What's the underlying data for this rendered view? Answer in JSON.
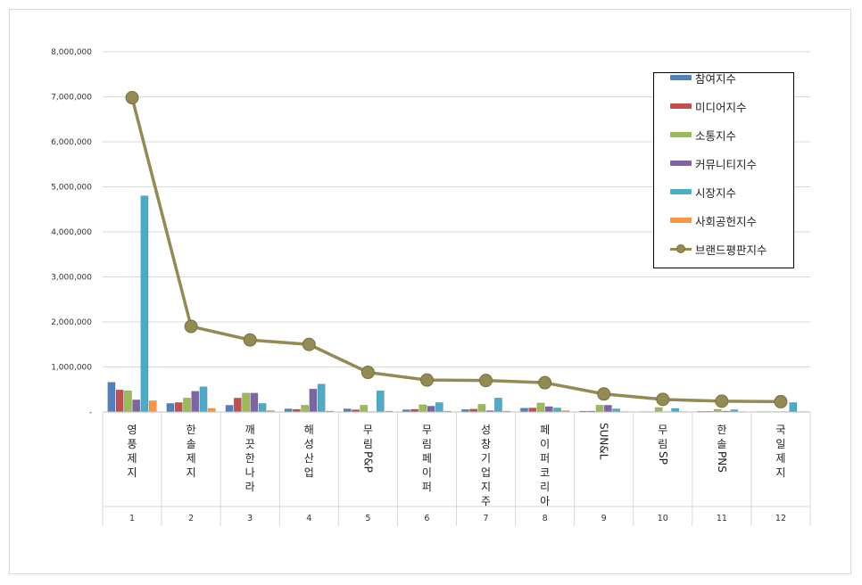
{
  "chart_data": {
    "type": "bar",
    "title": "",
    "xlabel": "",
    "ylabel": "",
    "ylim": [
      0,
      8000000
    ],
    "y_ticks": [
      "-",
      "1,000,000",
      "2,000,000",
      "3,000,000",
      "4,000,000",
      "5,000,000",
      "6,000,000",
      "7,000,000",
      "8,000,000"
    ],
    "grid": true,
    "legend_position": "top-right",
    "ranks": [
      "1",
      "2",
      "3",
      "4",
      "5",
      "6",
      "7",
      "8",
      "9",
      "10",
      "11",
      "12"
    ],
    "categories": [
      "영풍제지",
      "한솔제지",
      "깨끗한나라",
      "해성산업",
      "무림P&P",
      "무림페이퍼",
      "성창기업지주",
      "페이퍼코리아",
      "SUN&L",
      "무림SP",
      "한솔PNS",
      "국일제지"
    ],
    "series": [
      {
        "name": "참여지수",
        "color": "#4f81bd",
        "values": [
          660000,
          190000,
          150000,
          70000,
          70000,
          50000,
          55000,
          85000,
          20000,
          10000,
          15000,
          10000
        ]
      },
      {
        "name": "미디어지수",
        "color": "#c0504d",
        "values": [
          490000,
          210000,
          310000,
          60000,
          50000,
          60000,
          65000,
          90000,
          20000,
          10000,
          15000,
          10000
        ]
      },
      {
        "name": "소통지수",
        "color": "#9bbb59",
        "values": [
          470000,
          310000,
          420000,
          150000,
          150000,
          160000,
          170000,
          200000,
          150000,
          100000,
          60000,
          10000
        ]
      },
      {
        "name": "커뮤니티지수",
        "color": "#8064a2",
        "values": [
          270000,
          460000,
          420000,
          510000,
          10000,
          130000,
          30000,
          120000,
          150000,
          10000,
          20000,
          10000
        ]
      },
      {
        "name": "시장지수",
        "color": "#4bacc6",
        "values": [
          4800000,
          560000,
          190000,
          620000,
          470000,
          210000,
          310000,
          90000,
          70000,
          80000,
          50000,
          210000
        ]
      },
      {
        "name": "사회공헌지수",
        "color": "#f79646",
        "values": [
          250000,
          80000,
          30000,
          20000,
          20000,
          20000,
          20000,
          30000,
          10000,
          10000,
          10000,
          10000
        ]
      }
    ],
    "line_series": {
      "name": "브랜드평판지수",
      "color": "#948a54",
      "values": [
        6980000,
        1900000,
        1600000,
        1500000,
        880000,
        710000,
        700000,
        650000,
        400000,
        280000,
        240000,
        230000
      ]
    }
  }
}
